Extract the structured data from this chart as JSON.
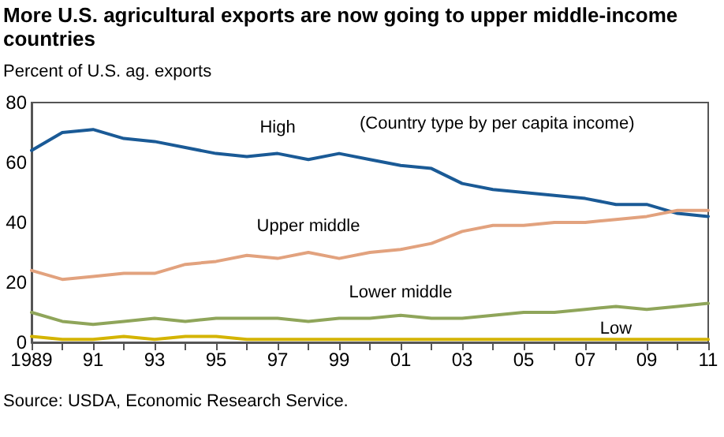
{
  "chart_data": {
    "type": "line",
    "title": "More U.S. agricultural exports are now going to upper middle-income countries",
    "ylabel": "Percent of U.S. ag. exports",
    "annotations": [
      "(Country type by per capita income)",
      "Source: USDA, Economic Research Service."
    ],
    "categories": [
      "1989",
      null,
      "91",
      null,
      "93",
      null,
      "95",
      null,
      "97",
      null,
      "99",
      null,
      "01",
      null,
      "03",
      null,
      "05",
      null,
      "07",
      null,
      "09",
      null,
      "11"
    ],
    "series": [
      {
        "name": "High",
        "color": "#1a5a96",
        "values": [
          64,
          70,
          71,
          68,
          67,
          65,
          63,
          62,
          63,
          61,
          63,
          61,
          59,
          58,
          53,
          51,
          50,
          49,
          48,
          46,
          46,
          43,
          42
        ]
      },
      {
        "name": "Upper middle",
        "color": "#e2a27e",
        "values": [
          24,
          21,
          22,
          23,
          23,
          26,
          27,
          29,
          28,
          30,
          28,
          30,
          31,
          33,
          37,
          39,
          39,
          40,
          40,
          41,
          42,
          44,
          44
        ]
      },
      {
        "name": "Lower middle",
        "color": "#8fa55a",
        "values": [
          10,
          7,
          6,
          7,
          8,
          7,
          8,
          8,
          8,
          7,
          8,
          8,
          9,
          8,
          8,
          9,
          10,
          10,
          11,
          12,
          11,
          12,
          13
        ]
      },
      {
        "name": "Low",
        "color": "#d4b400",
        "values": [
          2,
          1,
          1,
          2,
          1,
          2,
          2,
          1,
          1,
          1,
          1,
          1,
          1,
          1,
          1,
          1,
          1,
          1,
          1,
          1,
          1,
          1,
          1
        ]
      }
    ],
    "ylim": [
      0,
      80
    ],
    "yticks": [
      0,
      20,
      40,
      60,
      80
    ],
    "grid": false,
    "legend": false,
    "marker": "none",
    "line_style": "solid"
  }
}
